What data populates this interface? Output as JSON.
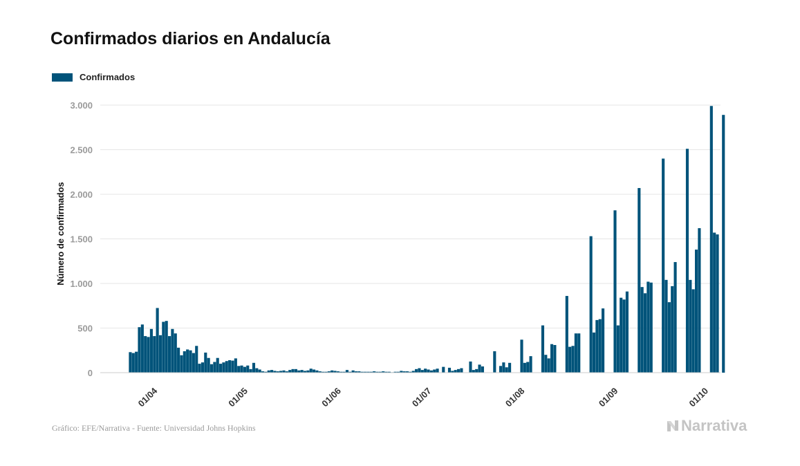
{
  "title": "Confirmados diarios en Andalucía",
  "source": "Gráfico: EFE/Narrativa - Fuente: Universidad Johns Hopkins",
  "brand": "Narrativa",
  "brand_icon": "narrativa-logo-icon",
  "colors": {
    "bar": "#00537a",
    "grid": "#e6e6e6",
    "axis": "#cccccc"
  },
  "chart_data": {
    "type": "bar",
    "ylabel": "Número de confirmados",
    "xlabel": "",
    "ylim": [
      0,
      3000
    ],
    "y_ticks": [
      0,
      500,
      1000,
      1500,
      2000,
      2500,
      3000
    ],
    "y_tick_labels": [
      "0",
      "500",
      "1.000",
      "1.500",
      "2.000",
      "2.500",
      "3.000"
    ],
    "x_ticks": [
      "2020-04-01",
      "2020-05-01",
      "2020-06-01",
      "2020-07-01",
      "2020-08-01",
      "2020-09-01",
      "2020-10-01"
    ],
    "x_tick_labels": [
      "01/04",
      "01/05",
      "01/06",
      "01/07",
      "01/08",
      "01/09",
      "01/10"
    ],
    "xlim": [
      "2020-03-15",
      "2020-10-07"
    ],
    "grid": true,
    "legend": {
      "position": "top-left",
      "entries": [
        "Confirmados"
      ]
    },
    "series": [
      {
        "name": "Confirmados",
        "start_date": "2020-03-25",
        "values": [
          230,
          220,
          235,
          510,
          540,
          410,
          400,
          490,
          410,
          725,
          420,
          570,
          580,
          410,
          490,
          440,
          280,
          195,
          240,
          260,
          250,
          220,
          300,
          100,
          115,
          225,
          165,
          95,
          120,
          165,
          100,
          115,
          130,
          140,
          135,
          160,
          75,
          80,
          65,
          80,
          40,
          110,
          50,
          35,
          15,
          10,
          25,
          30,
          20,
          15,
          20,
          25,
          15,
          30,
          40,
          40,
          25,
          30,
          20,
          25,
          45,
          35,
          25,
          15,
          10,
          10,
          15,
          25,
          20,
          15,
          10,
          10,
          30,
          10,
          25,
          15,
          15,
          10,
          10,
          10,
          10,
          15,
          10,
          10,
          15,
          10,
          10,
          5,
          10,
          10,
          20,
          15,
          15,
          10,
          20,
          40,
          50,
          30,
          45,
          35,
          25,
          35,
          45,
          0,
          65,
          0,
          55,
          20,
          30,
          40,
          50,
          0,
          0,
          125,
          30,
          40,
          90,
          70,
          0,
          0,
          0,
          240,
          0,
          75,
          115,
          60,
          110,
          0,
          0,
          0,
          370,
          110,
          120,
          185,
          0,
          0,
          0,
          530,
          200,
          160,
          320,
          310,
          0,
          0,
          0,
          860,
          290,
          300,
          440,
          440,
          0,
          0,
          0,
          1530,
          450,
          590,
          600,
          720,
          0,
          0,
          0,
          1820,
          530,
          840,
          820,
          910,
          0,
          0,
          0,
          2070,
          960,
          890,
          1020,
          1010,
          0,
          0,
          0,
          2400,
          1040,
          790,
          970,
          1240,
          0,
          0,
          0,
          2510,
          1040,
          935,
          1380,
          1620,
          0,
          0,
          0,
          2990,
          1570,
          1550,
          0,
          2890
        ]
      }
    ]
  }
}
